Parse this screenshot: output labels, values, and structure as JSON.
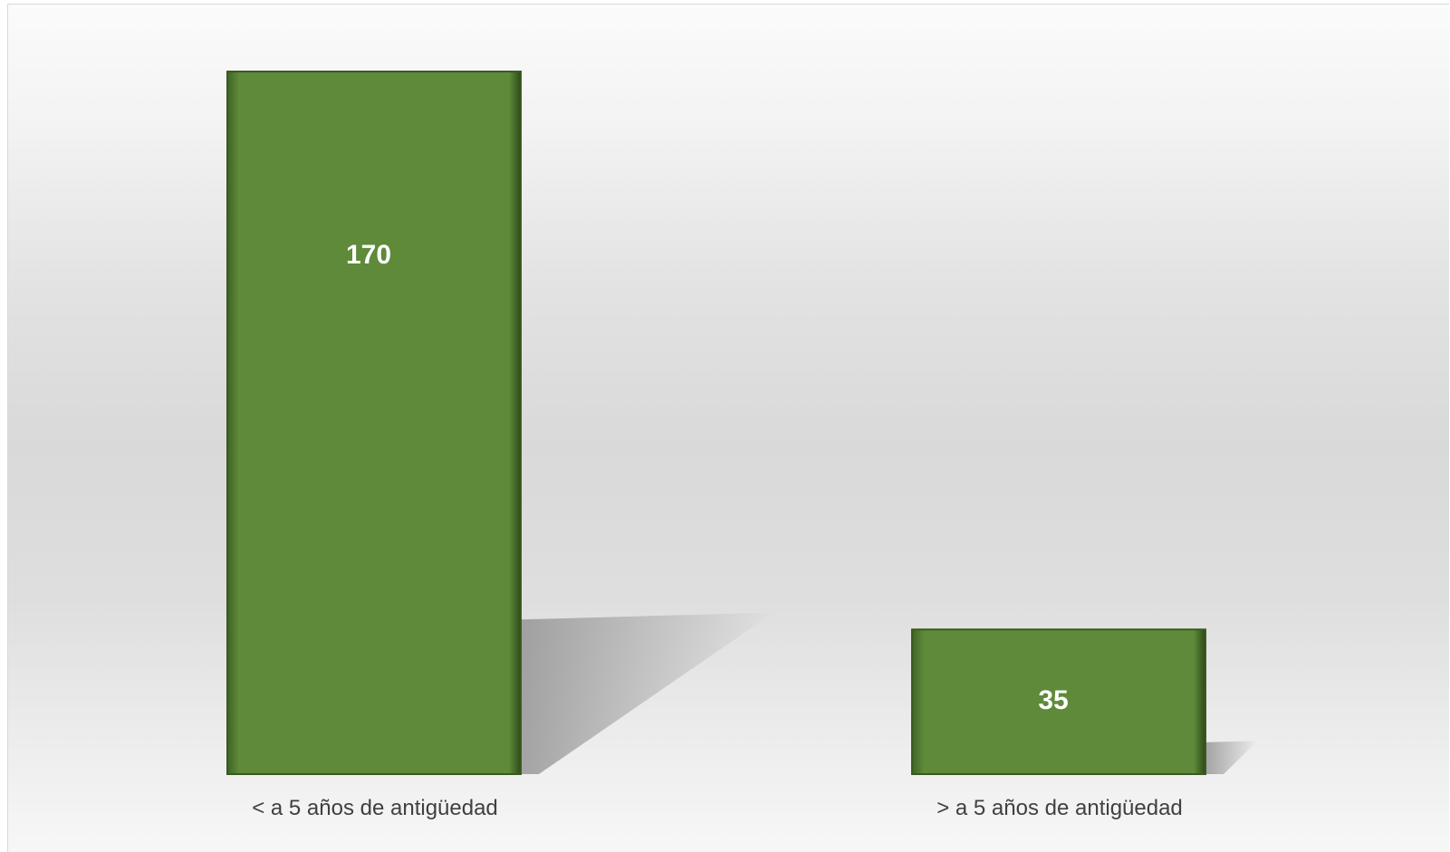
{
  "chart_data": {
    "type": "bar",
    "categories": [
      "< a 5 años de antigüedad",
      "> a 5 años de antigüedad"
    ],
    "values": [
      170,
      35
    ],
    "data_labels": [
      "170",
      "35"
    ],
    "title": "",
    "xlabel": "",
    "ylabel": "",
    "ylim": [
      0,
      170
    ],
    "grid": false,
    "legend": "none",
    "bar_color": "#5e8a3a",
    "bar_edge_color": "#3a5a20",
    "label_color": "#ffffff",
    "axis_label_color": "#404040"
  }
}
